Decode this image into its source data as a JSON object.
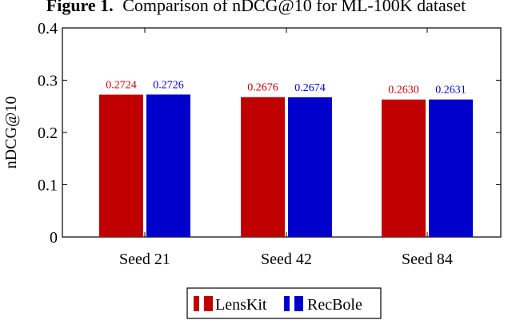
{
  "figure": {
    "label": "Figure 1.",
    "caption": "Comparison of nDCG@10 for ML-100K dataset"
  },
  "colors": {
    "lenskit": "#c00000",
    "recbole": "#0000cc",
    "axis": "#000000"
  },
  "chart_data": {
    "type": "bar",
    "title": "Figure 1. Comparison of nDCG@10 for ML-100K dataset",
    "xlabel": "",
    "ylabel": "nDCG@10",
    "categories": [
      "Seed 21",
      "Seed 42",
      "Seed 84"
    ],
    "ylim": [
      0,
      0.4
    ],
    "yticks": [
      0,
      0.1,
      0.2,
      0.3,
      0.4
    ],
    "ytick_labels": [
      "0",
      "0.1",
      "0.2",
      "0.3",
      "0.4"
    ],
    "grid": false,
    "legend_position": "bottom-center",
    "series": [
      {
        "name": "LensKit",
        "color": "#c00000",
        "values": [
          0.2724,
          0.2676,
          0.263
        ],
        "labels": [
          "0.2724",
          "0.2676",
          "0.2630"
        ]
      },
      {
        "name": "RecBole",
        "color": "#0000cc",
        "values": [
          0.2726,
          0.2674,
          0.2631
        ],
        "labels": [
          "0.2726",
          "0.2674",
          "0.2631"
        ]
      }
    ]
  }
}
